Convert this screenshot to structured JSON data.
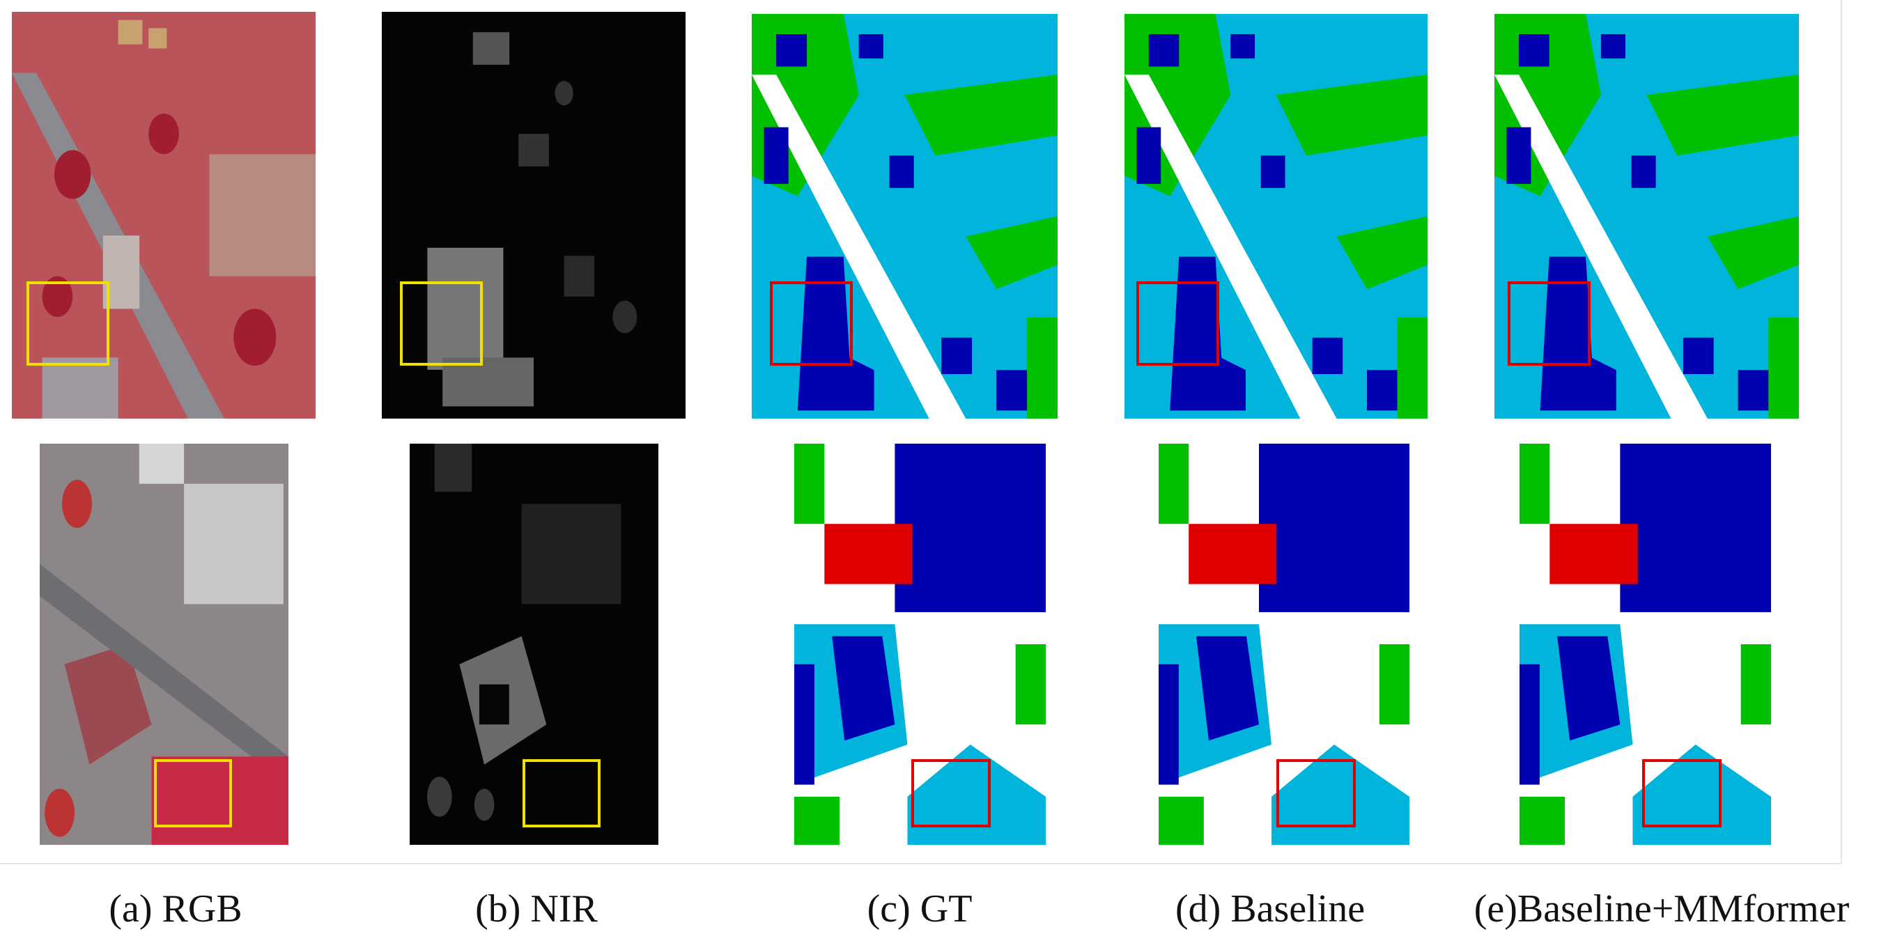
{
  "captions": [
    "(a) RGB",
    "(b) NIR",
    "(c) GT",
    "(d) Baseline",
    "(e)Baseline+MMformer"
  ]
}
